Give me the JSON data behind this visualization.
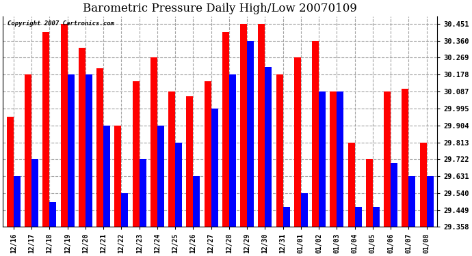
{
  "title": "Barometric Pressure Daily High/Low 20070109",
  "copyright": "Copyright 2007 Cartronics.com",
  "dates": [
    "12/16",
    "12/17",
    "12/18",
    "12/19",
    "12/20",
    "12/21",
    "12/22",
    "12/23",
    "12/24",
    "12/25",
    "12/26",
    "12/27",
    "12/28",
    "12/29",
    "12/30",
    "12/31",
    "01/01",
    "01/02",
    "01/03",
    "01/04",
    "01/05",
    "01/06",
    "01/07",
    "01/08"
  ],
  "highs": [
    29.95,
    30.178,
    30.407,
    30.451,
    30.32,
    30.21,
    29.904,
    30.14,
    30.269,
    30.087,
    30.06,
    30.14,
    30.407,
    30.451,
    30.451,
    30.178,
    30.269,
    30.36,
    30.087,
    29.813,
    29.722,
    30.087,
    30.1,
    29.813
  ],
  "lows": [
    29.631,
    29.722,
    29.49,
    30.178,
    30.178,
    29.904,
    29.54,
    29.722,
    29.904,
    29.813,
    29.631,
    29.995,
    30.178,
    30.36,
    30.22,
    29.467,
    29.54,
    30.087,
    30.087,
    29.467,
    29.467,
    29.7,
    29.631,
    29.631
  ],
  "ylim_min": 29.358,
  "ylim_max": 30.49,
  "yticks": [
    29.358,
    29.449,
    29.54,
    29.631,
    29.722,
    29.813,
    29.904,
    29.995,
    30.087,
    30.178,
    30.269,
    30.36,
    30.451
  ],
  "high_color": "#ff0000",
  "low_color": "#0000ff",
  "background_color": "#ffffff",
  "grid_color": "#999999",
  "bar_width": 0.38,
  "title_fontsize": 12
}
